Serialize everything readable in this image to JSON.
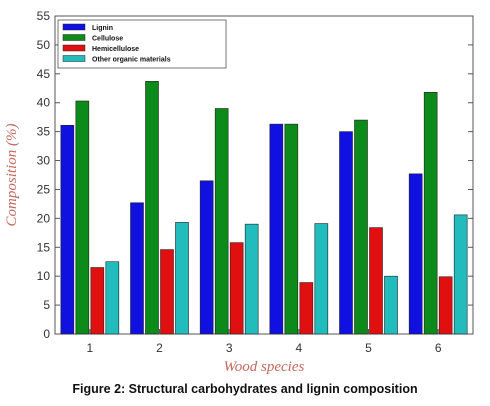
{
  "caption": "Figure 2: Structural carbohydrates and lignin composition",
  "chart_data": {
    "type": "bar",
    "title": "",
    "xlabel": "Wood species",
    "ylabel": "Composition (%)",
    "categories": [
      "1",
      "2",
      "3",
      "4",
      "5",
      "6"
    ],
    "ylim": [
      0,
      55
    ],
    "yticks": [
      0,
      5,
      10,
      15,
      20,
      25,
      30,
      35,
      40,
      45,
      50,
      55
    ],
    "grid": false,
    "legend_position": "top-left",
    "series": [
      {
        "name": "Lignin",
        "color": "#1010e0",
        "values": [
          36.1,
          22.7,
          26.5,
          36.3,
          35.0,
          27.7
        ]
      },
      {
        "name": "Cellulose",
        "color": "#0c8a1a",
        "values": [
          40.3,
          43.7,
          39.0,
          36.3,
          37.0,
          41.8
        ]
      },
      {
        "name": "Hemicellulose",
        "color": "#e01010",
        "values": [
          11.5,
          14.6,
          15.8,
          8.9,
          18.4,
          9.9
        ]
      },
      {
        "name": "Other organic materials",
        "color": "#22bcbc",
        "values": [
          12.5,
          19.3,
          19.0,
          19.1,
          10.0,
          20.6
        ]
      }
    ]
  }
}
